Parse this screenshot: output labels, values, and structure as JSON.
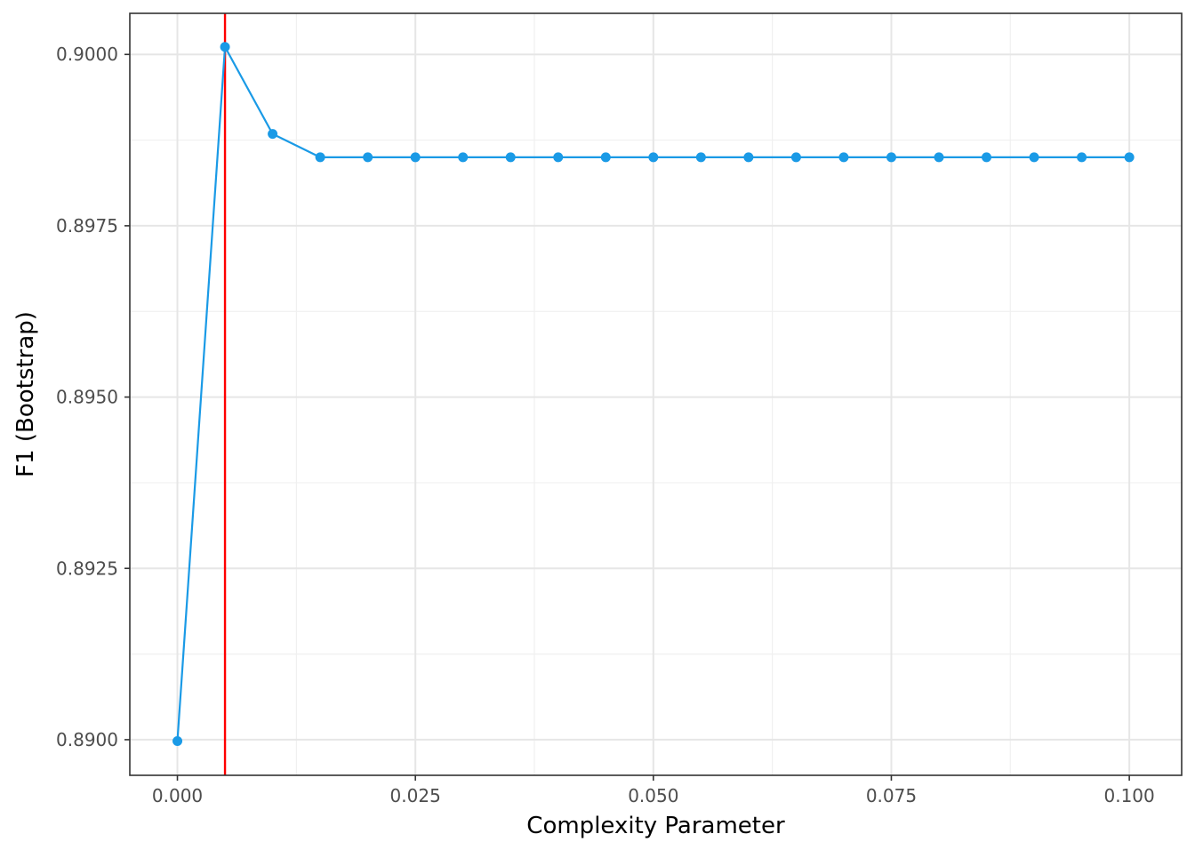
{
  "chart_data": {
    "type": "line",
    "title": "",
    "xlabel": "Complexity Parameter",
    "ylabel": "F1 (Bootstrap)",
    "xlim": [
      -0.005,
      0.1055
    ],
    "ylim": [
      0.88948,
      0.9006
    ],
    "x_ticks": [
      0.0,
      0.025,
      0.05,
      0.075,
      0.1
    ],
    "x_tick_labels": [
      "0.000",
      "0.025",
      "0.050",
      "0.075",
      "0.100"
    ],
    "y_ticks": [
      0.89,
      0.8925,
      0.895,
      0.8975,
      0.9
    ],
    "y_tick_labels": [
      "0.8900",
      "0.8925",
      "0.8950",
      "0.8975",
      "0.9000"
    ],
    "grid": true,
    "series": [
      {
        "color": "#1a9ae6",
        "x": [
          0.0,
          0.005,
          0.01,
          0.015,
          0.02,
          0.025,
          0.03,
          0.035,
          0.04,
          0.045,
          0.05,
          0.055,
          0.06,
          0.065,
          0.07,
          0.075,
          0.08,
          0.085,
          0.09,
          0.095,
          0.1
        ],
        "y": [
          0.88998,
          0.90011,
          0.89884,
          0.8985,
          0.8985,
          0.8985,
          0.8985,
          0.8985,
          0.8985,
          0.8985,
          0.8985,
          0.8985,
          0.8985,
          0.8985,
          0.8985,
          0.8985,
          0.8985,
          0.8985,
          0.8985,
          0.8985,
          0.8985
        ]
      }
    ],
    "annotations": [
      {
        "type": "vline",
        "x": 0.005,
        "color": "#ff0000"
      }
    ]
  }
}
